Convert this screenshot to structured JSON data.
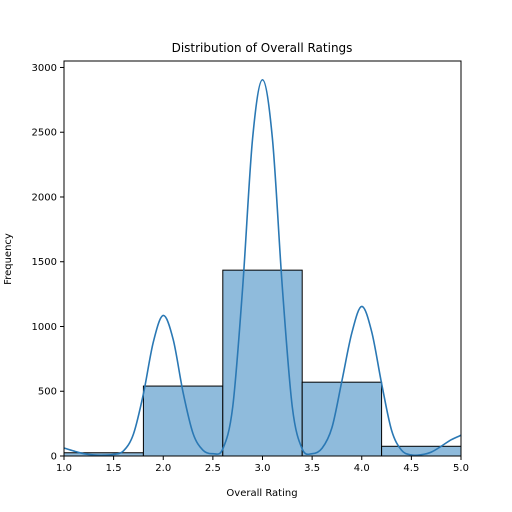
{
  "chart_data": {
    "type": "bar",
    "title": "Distribution of Overall Ratings",
    "xlabel": "Overall Rating",
    "ylabel": "Frequency",
    "xlim": [
      1.0,
      5.0
    ],
    "ylim": [
      0,
      3050
    ],
    "x_ticks": [
      "1.0",
      "1.5",
      "2.0",
      "2.5",
      "3.0",
      "3.5",
      "4.0",
      "4.5",
      "5.0"
    ],
    "x_tick_values": [
      1.0,
      1.5,
      2.0,
      2.5,
      3.0,
      3.5,
      4.0,
      4.5,
      5.0
    ],
    "y_ticks": [
      "0",
      "500",
      "1000",
      "1500",
      "2000",
      "2500",
      "3000"
    ],
    "y_tick_values": [
      0,
      500,
      1000,
      1500,
      2000,
      2500,
      3000
    ],
    "bins": [
      {
        "start": 1.0,
        "end": 1.8,
        "value": 25
      },
      {
        "start": 1.8,
        "end": 2.6,
        "value": 540
      },
      {
        "start": 2.6,
        "end": 3.4,
        "value": 1435
      },
      {
        "start": 3.4,
        "end": 4.2,
        "value": 570
      },
      {
        "start": 4.2,
        "end": 5.0,
        "value": 75
      }
    ],
    "kde": {
      "x": [
        1.0,
        1.1,
        1.2,
        1.3,
        1.4,
        1.5,
        1.6,
        1.7,
        1.8,
        1.9,
        2.0,
        2.1,
        2.2,
        2.3,
        2.4,
        2.5,
        2.6,
        2.7,
        2.8,
        2.9,
        3.0,
        3.1,
        3.2,
        3.3,
        3.4,
        3.5,
        3.6,
        3.7,
        3.8,
        3.9,
        4.0,
        4.1,
        4.2,
        4.3,
        4.4,
        4.5,
        4.6,
        4.7,
        4.8,
        4.9,
        5.0
      ],
      "y": [
        62,
        38,
        18,
        8,
        6,
        12,
        40,
        170,
        480,
        880,
        1085,
        900,
        490,
        175,
        45,
        18,
        55,
        380,
        1300,
        2450,
        2905,
        2450,
        1300,
        380,
        55,
        18,
        60,
        220,
        580,
        950,
        1155,
        960,
        560,
        200,
        45,
        8,
        10,
        30,
        75,
        125,
        160
      ]
    },
    "bar_fill": "#8fbbdc",
    "bar_edge": "#000000",
    "line_color": "#2a78b4",
    "grid": false,
    "legend": "none"
  }
}
